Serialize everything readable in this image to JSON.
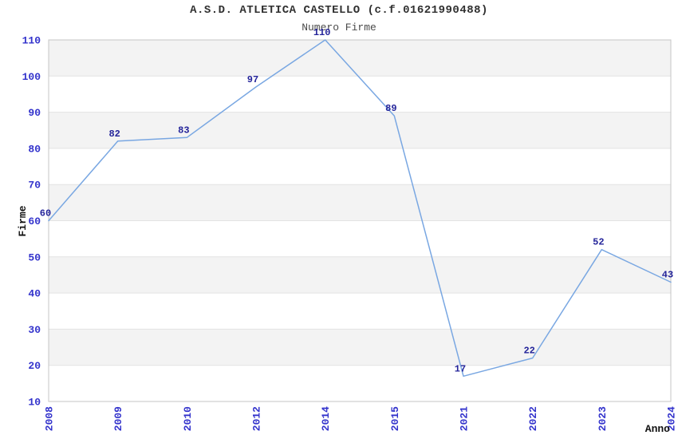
{
  "chart_data": {
    "type": "line",
    "title": "A.S.D. ATLETICA CASTELLO (c.f.01621990488)",
    "subtitle": "Numero Firme",
    "xlabel": "Anno",
    "ylabel": "Firme",
    "categories": [
      "2008",
      "2009",
      "2010",
      "2012",
      "2014",
      "2015",
      "2021",
      "2022",
      "2023",
      "2024"
    ],
    "values": [
      60,
      82,
      83,
      97,
      110,
      89,
      17,
      22,
      52,
      43
    ],
    "ylim": [
      10,
      110
    ],
    "ytick_step": 10,
    "yticks": [
      10,
      20,
      30,
      40,
      50,
      60,
      70,
      80,
      90,
      100,
      110
    ],
    "grid": "horizontal-bands-alternating",
    "legend": "none",
    "point_labels_visible": true,
    "xtick_rotation_deg": -90,
    "colors": {
      "line": "#79a7e2",
      "tick_labels": "#3333cc",
      "point_labels": "#24249a",
      "band": "#f3f3f3",
      "gridline": "#e3e3e3",
      "frame": "#c4c4c4",
      "title": "#303030",
      "subtitle": "#4a4a4a",
      "axis_titles": "#111111",
      "background": "#ffffff"
    }
  }
}
